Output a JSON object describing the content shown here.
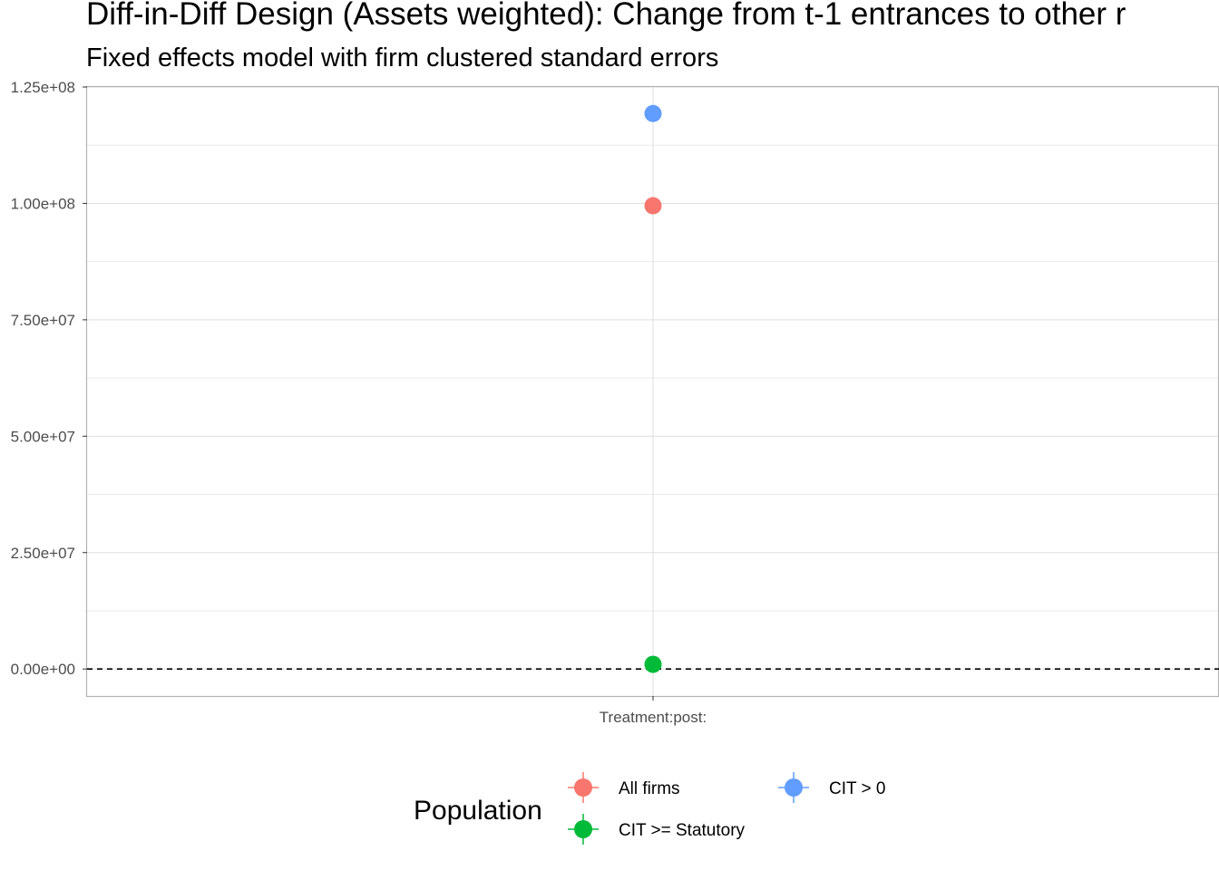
{
  "chart_data": {
    "type": "scatter",
    "title": "Diff-in-Diff Design (Assets weighted): Change from t-1 entrances to other r",
    "subtitle": "Fixed effects model with firm clustered standard errors",
    "xlabel": "",
    "ylabel": "",
    "categories": [
      "Treatment:post:"
    ],
    "ylim": [
      -5800000,
      125000000
    ],
    "y_ticks": [
      {
        "value": 0,
        "label": "0.00e+00"
      },
      {
        "value": 25000000,
        "label": "2.50e+07"
      },
      {
        "value": 50000000,
        "label": "5.00e+07"
      },
      {
        "value": 75000000,
        "label": "7.50e+07"
      },
      {
        "value": 100000000,
        "label": "1.00e+08"
      },
      {
        "value": 125000000,
        "label": "1.25e+08"
      }
    ],
    "reference_line": {
      "y": 0,
      "style": "dashed"
    },
    "grid": true,
    "legend": {
      "title": "Population",
      "position": "bottom",
      "entries": [
        {
          "label": "All firms",
          "color": "#F8766D"
        },
        {
          "label": "CIT >= Statutory",
          "color": "#00BA38"
        },
        {
          "label": "CIT > 0",
          "color": "#619CFF"
        }
      ]
    },
    "series": [
      {
        "name": "All firms",
        "color": "#F8766D",
        "values": [
          99500000
        ]
      },
      {
        "name": "CIT >= Statutory",
        "color": "#00BA38",
        "values": [
          1000000
        ]
      },
      {
        "name": "CIT > 0",
        "color": "#619CFF",
        "values": [
          119300000
        ]
      }
    ]
  }
}
